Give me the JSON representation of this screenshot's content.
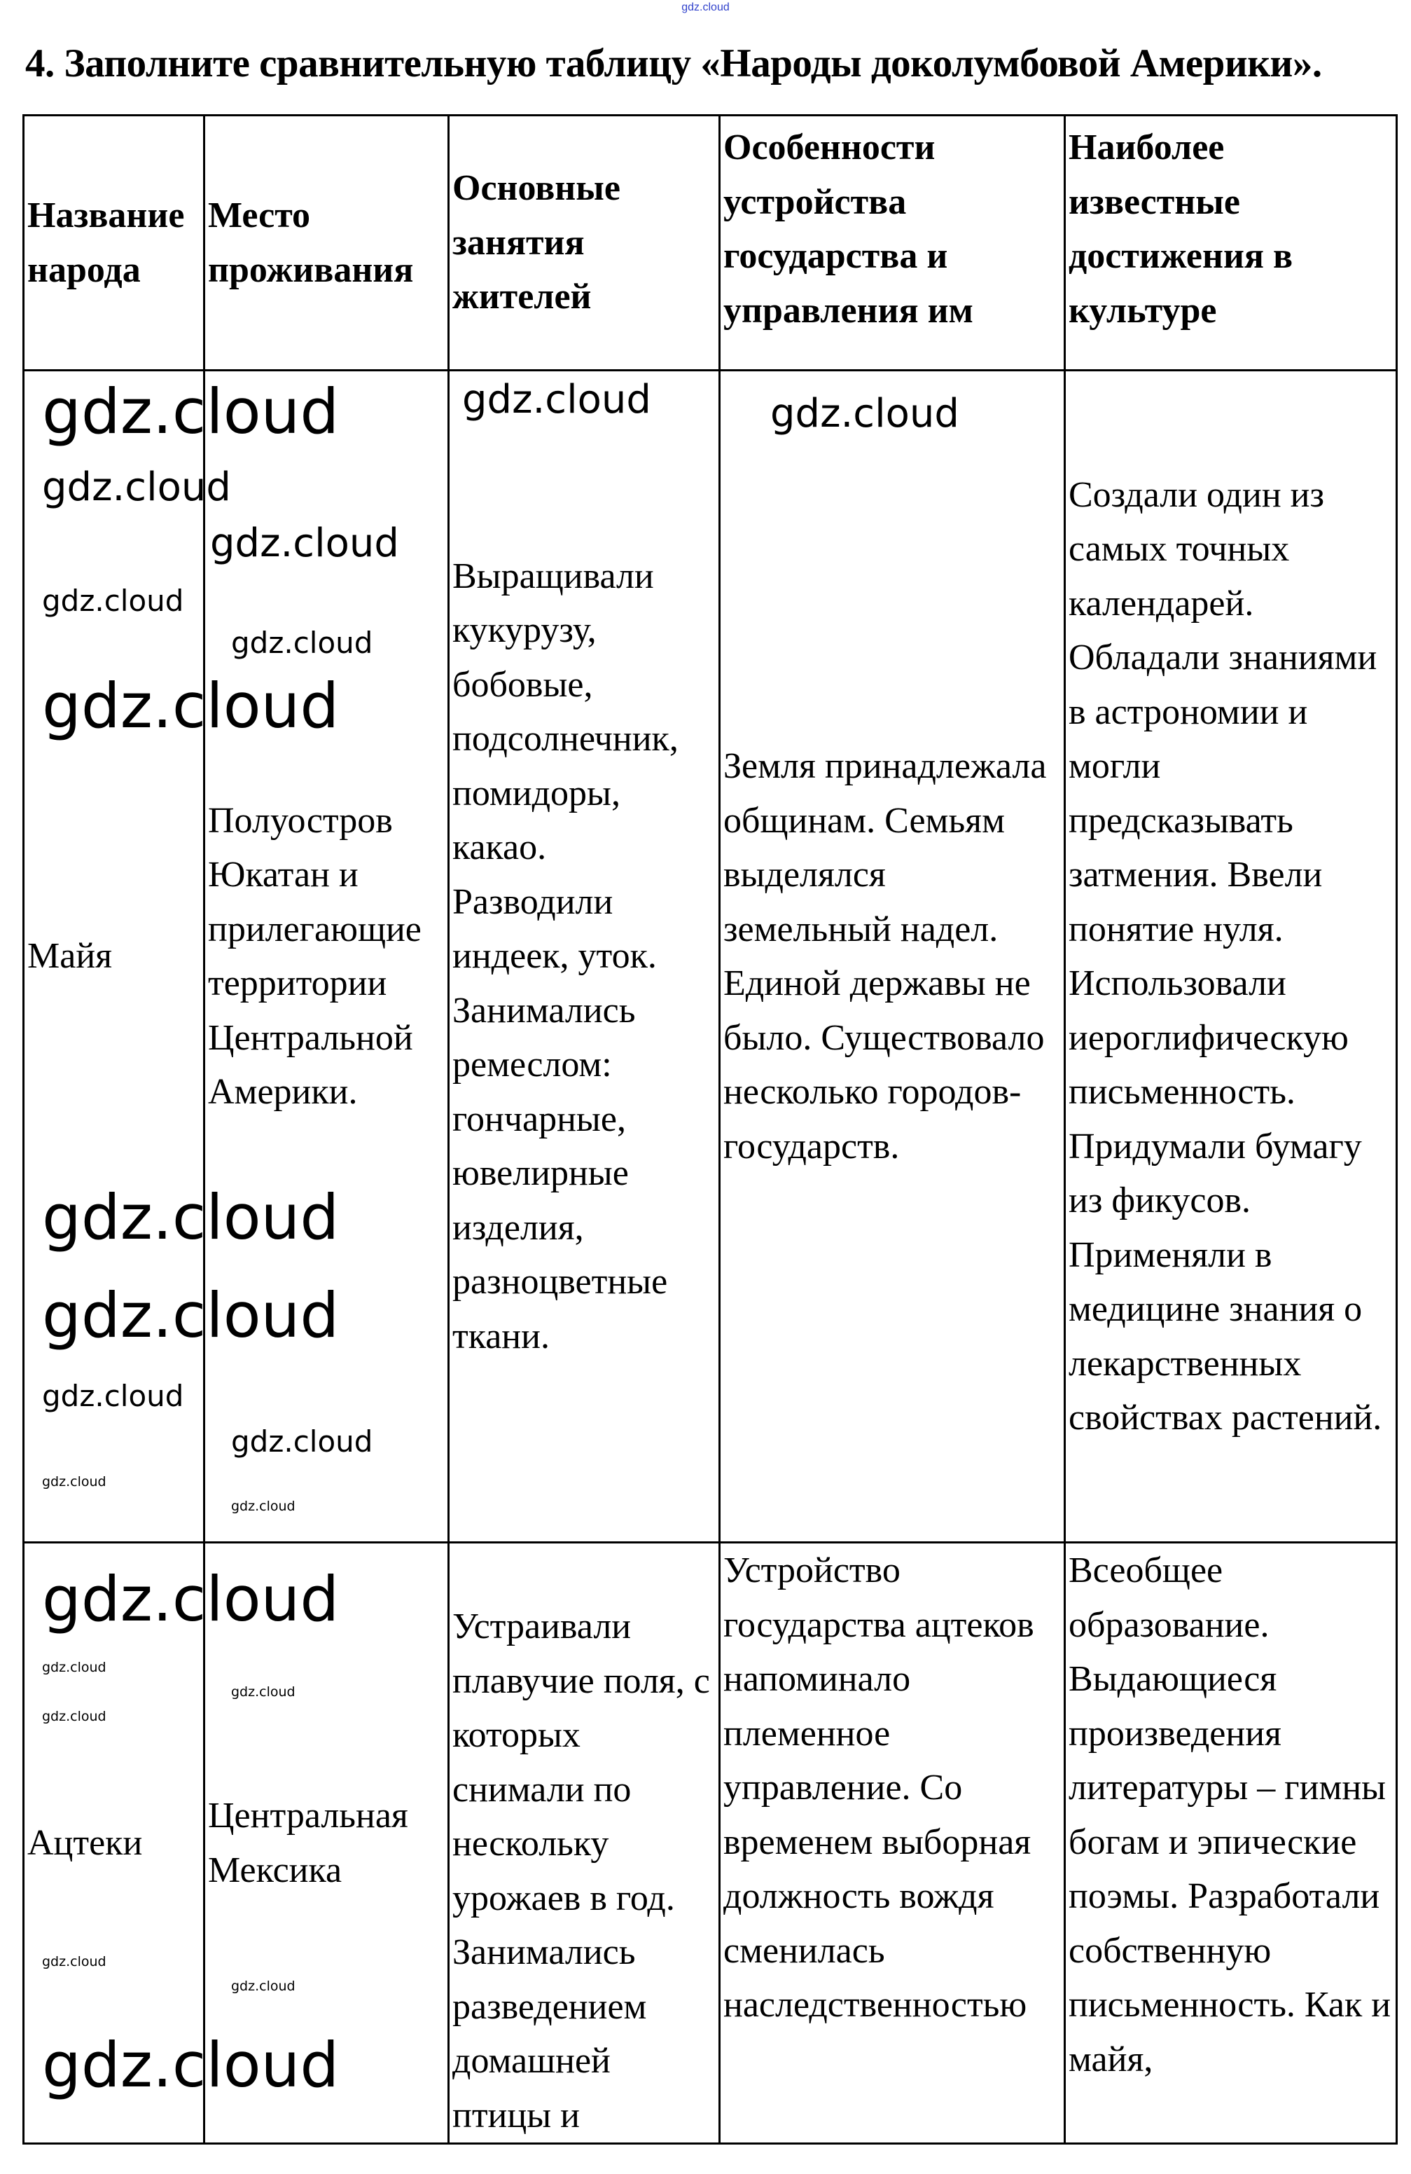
{
  "top_watermark": "gdz.cloud",
  "title": "4. Заполните сравнительную таблицу «Народы доколумбовой Америки».",
  "table": {
    "headers": [
      "Название народа",
      "Место проживания",
      "Основные занятия жителей",
      "Особенности устройства государства и управления им",
      "Наиболее известные достижения в культуре"
    ],
    "rows": [
      {
        "name": "Майя",
        "place": "Полуостров Юкатан и прилегающие территории Центральной Америки.",
        "occupations": "Выращивали кукурузу, бобовые, подсолнечник, помидоры, какао. Разводили индеек, уток. Занимались ремеслом: гончарные, ювелирные изделия, разноцветные ткани.",
        "government": "Земля принадлежала общинам. Семьям выделялся земельный надел. Единой державы не было. Существовало несколько городов-государств.",
        "culture": "Создали один из самых точных календарей. Обладали знаниями в астрономии и могли предсказывать затмения. Ввели понятие нуля. Использовали иероглифическую письменность. Придумали бумагу из фикусов. Применяли в медицине знания о лекарственных свойствах растений."
      },
      {
        "name": "Ацтеки",
        "place": "Центральная Мексика",
        "occupations": "Устраивали плавучие поля, с которых снимали по нескольку урожаев в год. Занимались разведением домашней птицы и",
        "government": "Устройство государства ацтеков напоминало племенное управление. Со временем выборная должность вождя сменилась наследственностью",
        "culture": "Всеобщее образование. Выдающиеся произведения литературы – гимны богам и эпические поэмы. Разработали собственную письменность. Как и майя,"
      }
    ]
  },
  "watermark": "gdz.cloud"
}
